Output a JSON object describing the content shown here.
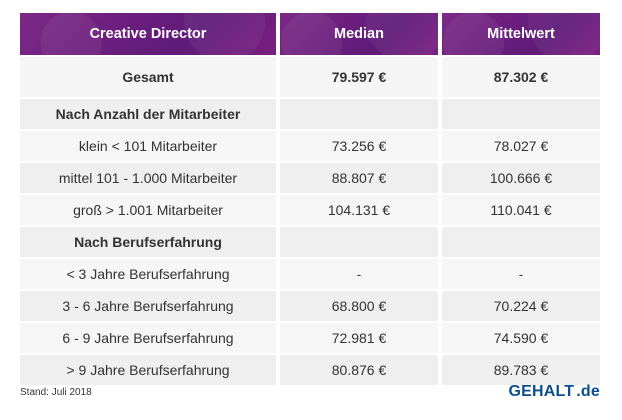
{
  "table": {
    "headers": [
      "Creative Director",
      "Median",
      "Mittelwert"
    ],
    "rows": [
      {
        "label": "Gesamt",
        "median": "79.597 €",
        "mittelwert": "87.302 €"
      },
      {
        "label": "Nach Anzahl der Mitarbeiter",
        "median": "",
        "mittelwert": ""
      },
      {
        "label": "klein < 101 Mitarbeiter",
        "median": "73.256 €",
        "mittelwert": "78.027 €"
      },
      {
        "label": "mittel 101 - 1.000 Mitarbeiter",
        "median": "88.807 €",
        "mittelwert": "100.666 €"
      },
      {
        "label": "groß > 1.001 Mitarbeiter",
        "median": "104.131 €",
        "mittelwert": "110.041 €"
      },
      {
        "label": "Nach Berufserfahrung",
        "median": "",
        "mittelwert": ""
      },
      {
        "label": "< 3 Jahre Berufserfahrung",
        "median": "-",
        "mittelwert": "-"
      },
      {
        "label": "3 - 6 Jahre Berufserfahrung",
        "median": "68.800 €",
        "mittelwert": "70.224 €"
      },
      {
        "label": "6 - 9 Jahre Berufserfahrung",
        "median": "72.981 €",
        "mittelwert": "74.590 €"
      },
      {
        "label": "> 9 Jahre Berufserfahrung",
        "median": "80.876 €",
        "mittelwert": "89.783 €"
      }
    ]
  },
  "footer": {
    "stand": "Stand: Juli 2018",
    "brand_part1": "GEHALT",
    "brand_part2": ".de"
  },
  "colors": {
    "header_purple": "#6d1f7e",
    "row_gray": "#efefef",
    "brand_blue": "#0b4f8c"
  }
}
